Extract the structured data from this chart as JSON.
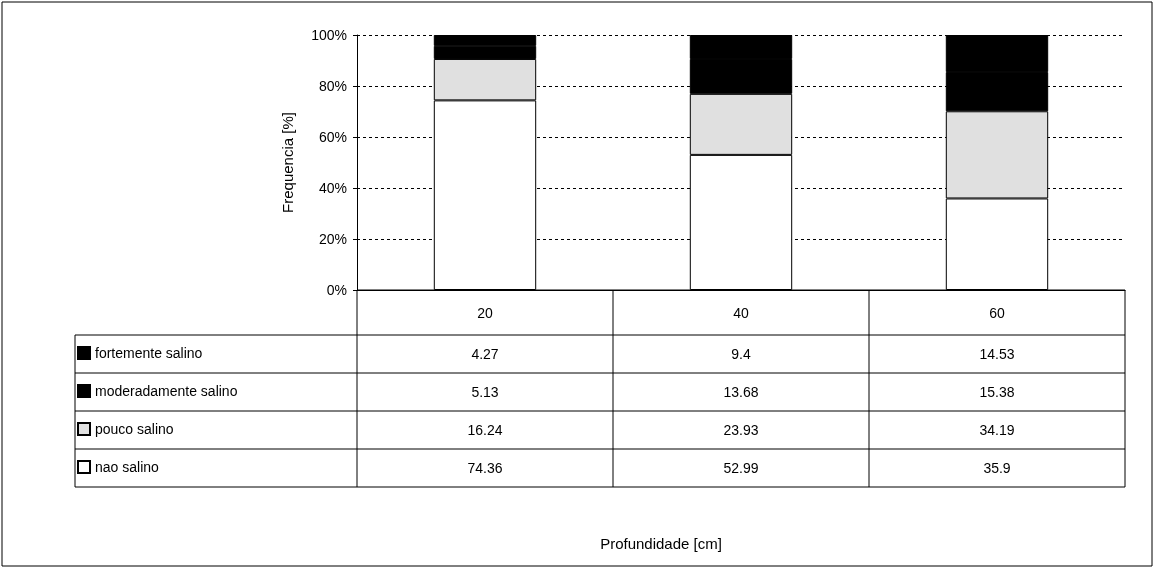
{
  "chart_data": {
    "type": "bar",
    "stacked": true,
    "annotations": [
      "Profundidade [cm]"
    ],
    "ylabel": "Frequencia [%]",
    "categories": [
      "20",
      "40",
      "60"
    ],
    "series": [
      {
        "name": "nao salino",
        "color": "#ffffff",
        "values": [
          74.36,
          52.99,
          35.9
        ]
      },
      {
        "name": "pouco salino",
        "color": "#e0e0e0",
        "values": [
          16.24,
          23.93,
          34.19
        ]
      },
      {
        "name": "moderadamente salino",
        "color": "#000000",
        "values": [
          5.13,
          13.68,
          15.38
        ]
      },
      {
        "name": "fortemente salino",
        "color": "#000000",
        "values": [
          4.27,
          9.4,
          14.53
        ]
      }
    ],
    "ylim": [
      0,
      100
    ],
    "yticks": [
      {
        "value": 0,
        "label": "0%"
      },
      {
        "value": 20,
        "label": "20%"
      },
      {
        "value": 40,
        "label": "40%"
      },
      {
        "value": 60,
        "label": "60%"
      },
      {
        "value": 80,
        "label": "80%"
      },
      {
        "value": 100,
        "label": "100%"
      }
    ],
    "grid": "y",
    "legend": "bottom left",
    "data_labels": true
  }
}
